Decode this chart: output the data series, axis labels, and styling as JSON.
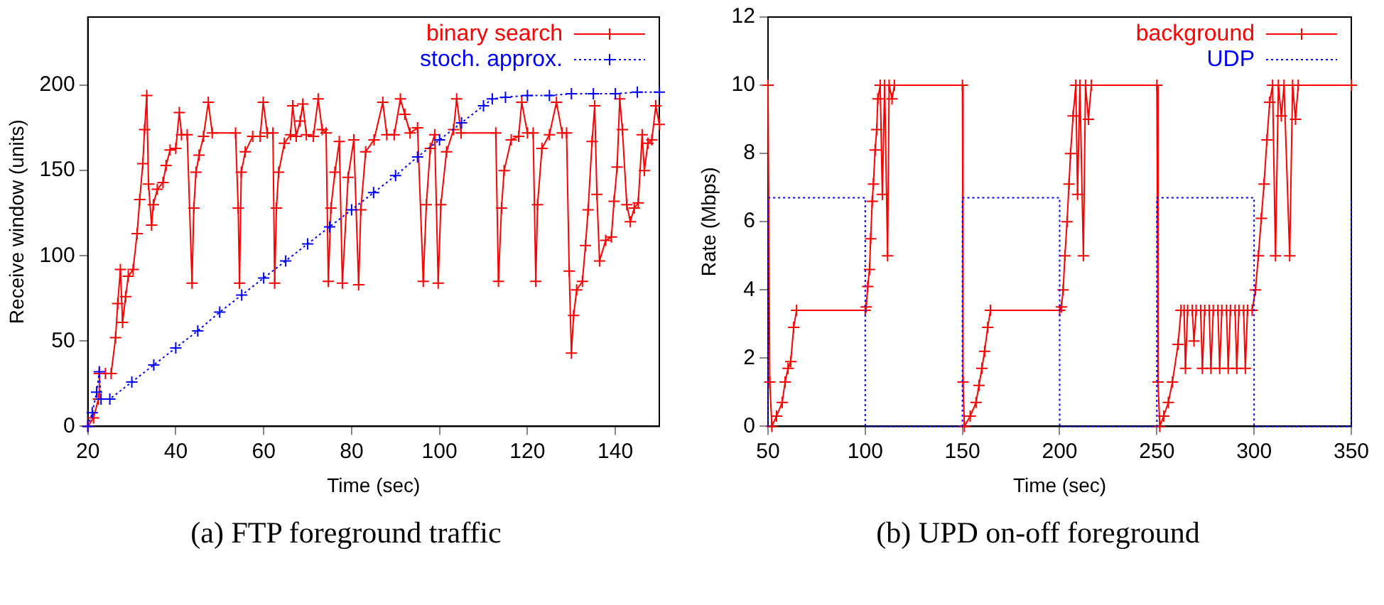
{
  "chart_data": [
    {
      "type": "line",
      "xlabel": "Time (sec)",
      "ylabel": "Receive window (units)",
      "xlim": [
        20,
        150
      ],
      "ylim": [
        0,
        240
      ],
      "xticks": [
        20,
        40,
        60,
        80,
        100,
        120,
        140
      ],
      "yticks": [
        0,
        50,
        100,
        150,
        200
      ],
      "legend": "top right",
      "annotations": [
        "(a) FTP foreground traffic"
      ],
      "series": [
        {
          "name": "binary search",
          "color": "#ff0000",
          "marker": "cross",
          "line_style": "solid",
          "x": [
            20,
            21.3,
            22.4,
            22.6,
            24,
            25.3,
            26.3,
            26.8,
            27.4,
            27.9,
            28.6,
            29.2,
            30.3,
            31.2,
            31.8,
            32.5,
            32.9,
            33.4,
            33.8,
            34.5,
            34.9,
            35.8,
            37.1,
            37.8,
            38.7,
            40,
            40.8,
            41.3,
            42.6,
            43.7,
            44.1,
            44.6,
            45.3,
            46.3,
            47.4,
            48.3,
            53.6,
            54.2,
            54.5,
            54.9,
            55.8,
            57.5,
            59.2,
            59.9,
            60.8,
            62.1,
            62.5,
            62.9,
            63.4,
            64.7,
            66.1,
            66.6,
            67.4,
            68.3,
            68.9,
            69.7,
            71.3,
            72.4,
            73.3,
            74.2,
            74.7,
            75.3,
            76.2,
            77.2,
            77.9,
            79.2,
            80.5,
            81.6,
            82.1,
            83.2,
            85.1,
            87.1,
            88,
            89.7,
            91.1,
            92.1,
            93.3,
            95,
            96.3,
            97,
            97.9,
            98.9,
            99.7,
            100.3,
            101.6,
            103.2,
            103.9,
            104.9,
            112.8,
            113.4,
            114.1,
            114.7,
            116.3,
            118,
            118.7,
            120,
            121.3,
            121.9,
            122.3,
            123.3,
            125,
            126.6,
            127.9,
            128.9,
            129.5,
            130,
            130.5,
            131.2,
            132.5,
            133.2,
            133.8,
            134.7,
            135.3,
            135.8,
            136.4,
            137.8,
            139.1,
            139.7,
            140.4,
            141,
            141.6,
            142.6,
            143.4,
            144.3,
            145.2,
            146.1,
            146.6,
            147.4,
            148.3,
            149.2,
            150
          ],
          "values": [
            0,
            5,
            16,
            31,
            31,
            31,
            52,
            72,
            92,
            61,
            76,
            88,
            92,
            113,
            133,
            154,
            174,
            194,
            142,
            118,
            130,
            139,
            143,
            153,
            162,
            163,
            184,
            171,
            171,
            84,
            128,
            149,
            159,
            170,
            190,
            172,
            172,
            128,
            84,
            149,
            161,
            170,
            170,
            190,
            172,
            172,
            84,
            128,
            149,
            166,
            171,
            188,
            170,
            179,
            189,
            171,
            170,
            192,
            174,
            172,
            85,
            128,
            149,
            167,
            84,
            146,
            168,
            83,
            127,
            161,
            168,
            190,
            171,
            171,
            192,
            183,
            172,
            175,
            85,
            130,
            163,
            171,
            84,
            130,
            161,
            174,
            192,
            172,
            172,
            85,
            128,
            150,
            168,
            170,
            190,
            172,
            172,
            85,
            130,
            163,
            171,
            190,
            172,
            172,
            91,
            43,
            65,
            80,
            85,
            106,
            127,
            167,
            188,
            136,
            97,
            109,
            111,
            132,
            152,
            192,
            174,
            130,
            120,
            128,
            131,
            171,
            150,
            166,
            168,
            188,
            177
          ]
        },
        {
          "name": "stoch. approx.",
          "color": "#0000ff",
          "marker": "cross",
          "line_style": "dotted",
          "x": [
            20,
            21,
            22,
            22.6,
            23,
            25,
            30,
            35,
            40,
            45,
            50,
            55,
            60,
            65,
            70,
            75,
            80,
            85,
            90,
            95,
            100,
            105,
            110,
            112,
            115,
            120,
            125,
            130,
            135,
            140,
            145,
            150
          ],
          "values": [
            0,
            8,
            20,
            32,
            16,
            16,
            26,
            36,
            46,
            56,
            67,
            77,
            87,
            97,
            107,
            117,
            127,
            137,
            147,
            158,
            168,
            178,
            188,
            192,
            193,
            194,
            194,
            195,
            195,
            195,
            196,
            196
          ]
        }
      ]
    },
    {
      "type": "line",
      "xlabel": "Time (sec)",
      "ylabel": "Rate (Mbps)",
      "xlim": [
        50,
        350
      ],
      "ylim": [
        0,
        12
      ],
      "xticks": [
        50,
        100,
        150,
        200,
        250,
        300,
        350
      ],
      "yticks": [
        0,
        2,
        4,
        6,
        8,
        10,
        12
      ],
      "legend": "top right",
      "annotations": [
        "(b) UPD on-off foreground"
      ],
      "series": [
        {
          "name": "background",
          "color": "#ff0000",
          "marker": "cross",
          "line_style": "solid",
          "x": [
            50,
            50.9,
            52,
            54.4,
            57.3,
            58.8,
            60.3,
            61.7,
            63.2,
            64.7,
            100,
            100.5,
            101.3,
            102.2,
            102.8,
            103.6,
            104.2,
            105.1,
            105.9,
            106.5,
            107.7,
            108.8,
            110,
            111.5,
            112.3,
            113.8,
            115,
            150,
            150.3,
            151,
            154,
            157,
            158.5,
            160,
            161.4,
            163,
            164.4,
            200,
            200.9,
            201.8,
            202.7,
            203.8,
            204.8,
            205.6,
            206.9,
            208.3,
            209.2,
            210.4,
            212.2,
            213.3,
            214.8,
            216.3,
            250,
            250.6,
            251.5,
            253.5,
            255.9,
            258,
            260.9,
            262.4,
            264,
            264.7,
            265.8,
            268.2,
            269.1,
            270.2,
            272.5,
            273.4,
            274.6,
            276.9,
            277.8,
            279,
            281.4,
            282.3,
            283.4,
            285.8,
            286.7,
            287.8,
            290.2,
            291.1,
            292.2,
            294.6,
            295.5,
            296.6,
            299,
            300.7,
            302.2,
            303.7,
            305.1,
            306.6,
            308,
            309.5,
            311,
            312.5,
            314,
            315.4,
            318.3,
            319.8,
            321.3,
            322.7,
            350
          ],
          "values": [
            10,
            1.3,
            0,
            0.3,
            0.7,
            1.3,
            1.7,
            1.9,
            2.9,
            3.4,
            3.4,
            3.5,
            4.1,
            4.6,
            5.5,
            6.6,
            7.1,
            8.1,
            8.7,
            9.6,
            10,
            6.8,
            10,
            5,
            10,
            9.6,
            10,
            10,
            1.3,
            0,
            0.3,
            0.7,
            1.2,
            1.7,
            2.2,
            2.9,
            3.4,
            3.4,
            3.5,
            4,
            5,
            6,
            7.1,
            8,
            9.1,
            10,
            6.8,
            10,
            5,
            10,
            9,
            10,
            10,
            1.3,
            0,
            0.3,
            0.7,
            1.3,
            2.4,
            3.4,
            3.4,
            1.7,
            3.4,
            3.4,
            2.5,
            3.4,
            3.4,
            1.7,
            3.4,
            3.4,
            1.7,
            3.4,
            3.4,
            1.7,
            3.4,
            3.4,
            1.7,
            3.4,
            3.4,
            1.7,
            3.4,
            3.4,
            1.7,
            3.4,
            3.4,
            4,
            5,
            6.1,
            7.1,
            8.4,
            9.5,
            10,
            5,
            10,
            9.1,
            10,
            5,
            10,
            9,
            10,
            10
          ]
        },
        {
          "name": "UDP",
          "color": "#0000ff",
          "marker": "none",
          "line_style": "dotted",
          "x": [
            50,
            50,
            100,
            100,
            150,
            150,
            200,
            200,
            250,
            250,
            300,
            300,
            350,
            350
          ],
          "values": [
            0,
            6.7,
            6.7,
            0,
            0,
            6.7,
            6.7,
            0,
            0,
            6.7,
            6.7,
            0,
            0,
            6.7
          ]
        }
      ]
    }
  ]
}
